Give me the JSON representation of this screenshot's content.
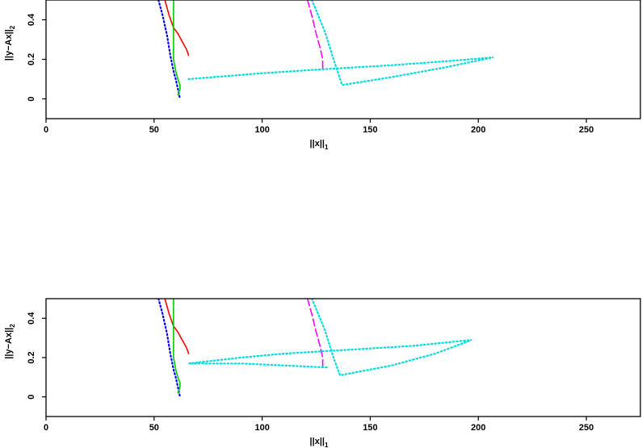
{
  "chart_data": [
    {
      "type": "line",
      "xlabel": "||x||",
      "xlabel_sub": "1",
      "ylabel": "||y−Ax||",
      "ylabel_sub": "2",
      "xlim": [
        0,
        275
      ],
      "ylim": [
        -0.1,
        0.5
      ],
      "xticks": [
        0,
        50,
        100,
        150,
        200,
        250
      ],
      "yticks": [
        0,
        0.2,
        0.4
      ],
      "grid": false,
      "series": [
        {
          "color": "#0000ff",
          "style": "dotted",
          "x": [
            52,
            54,
            56,
            57.5,
            59,
            60,
            61,
            62
          ],
          "y": [
            0.5,
            0.42,
            0.32,
            0.22,
            0.14,
            0.1,
            0.05,
            0.0
          ]
        },
        {
          "color": "#ff0000",
          "style": "solid",
          "x": [
            55,
            57,
            59,
            61,
            63,
            65,
            66
          ],
          "y": [
            0.5,
            0.42,
            0.36,
            0.33,
            0.29,
            0.25,
            0.22
          ]
        },
        {
          "color": "#00cc00",
          "style": "solid",
          "x": [
            59,
            59,
            59,
            59,
            60,
            61,
            62,
            62,
            61
          ],
          "y": [
            0.5,
            0.4,
            0.3,
            0.2,
            0.14,
            0.1,
            0.07,
            0.05,
            0.02
          ]
        },
        {
          "color": "#ff00ff",
          "style": "dashed",
          "x": [
            121,
            123,
            125,
            127,
            128,
            128
          ],
          "y": [
            0.5,
            0.42,
            0.33,
            0.25,
            0.2,
            0.15
          ]
        },
        {
          "color": "#00dddd",
          "style": "dotted",
          "x": [
            123,
            129,
            133,
            137,
            160,
            185,
            207,
            185,
            160,
            128,
            100,
            66
          ],
          "y": [
            0.5,
            0.34,
            0.2,
            0.07,
            0.11,
            0.16,
            0.21,
            0.19,
            0.17,
            0.15,
            0.13,
            0.1
          ]
        }
      ]
    },
    {
      "type": "line",
      "xlabel": "||x||",
      "xlabel_sub": "1",
      "ylabel": "||y−Ax||",
      "ylabel_sub": "2",
      "xlim": [
        0,
        275
      ],
      "ylim": [
        -0.1,
        0.5
      ],
      "xticks": [
        0,
        50,
        100,
        150,
        200,
        250
      ],
      "yticks": [
        0,
        0.2,
        0.4
      ],
      "grid": false,
      "series": [
        {
          "color": "#0000ff",
          "style": "dotted",
          "x": [
            52,
            54,
            56,
            57.5,
            59,
            60,
            61,
            62
          ],
          "y": [
            0.5,
            0.42,
            0.32,
            0.22,
            0.14,
            0.1,
            0.05,
            0.0
          ]
        },
        {
          "color": "#ff0000",
          "style": "solid",
          "x": [
            55,
            57,
            59,
            61,
            63,
            65,
            66
          ],
          "y": [
            0.5,
            0.42,
            0.36,
            0.33,
            0.29,
            0.25,
            0.22
          ]
        },
        {
          "color": "#00cc00",
          "style": "solid",
          "x": [
            59,
            59,
            59,
            59,
            60,
            61,
            62,
            62,
            61
          ],
          "y": [
            0.5,
            0.4,
            0.3,
            0.2,
            0.14,
            0.1,
            0.07,
            0.05,
            0.02
          ]
        },
        {
          "color": "#ff00ff",
          "style": "dashed",
          "x": [
            121,
            123,
            125,
            127,
            128,
            128
          ],
          "y": [
            0.5,
            0.42,
            0.33,
            0.25,
            0.2,
            0.15
          ]
        },
        {
          "color": "#00dddd",
          "style": "dotted",
          "x": [
            123,
            129,
            133,
            136,
            160,
            180,
            197,
            170,
            140,
            110,
            90,
            66,
            90,
            110,
            130
          ],
          "y": [
            0.5,
            0.34,
            0.2,
            0.11,
            0.16,
            0.22,
            0.29,
            0.26,
            0.24,
            0.22,
            0.2,
            0.17,
            0.17,
            0.16,
            0.15
          ]
        }
      ]
    }
  ]
}
